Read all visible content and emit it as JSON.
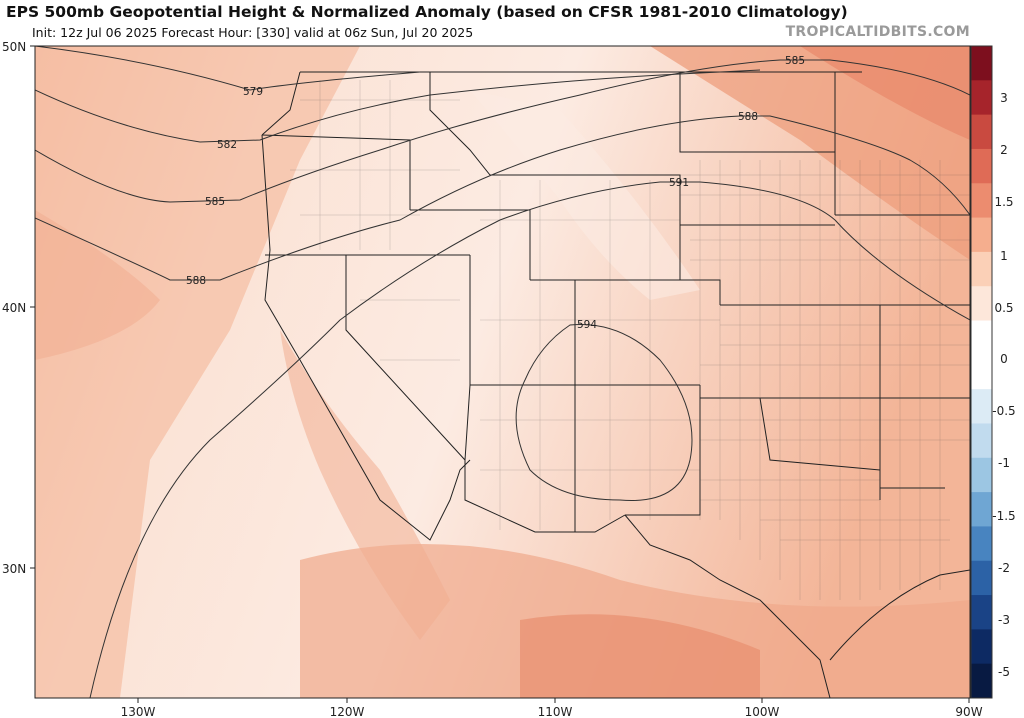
{
  "header": {
    "title": "EPS 500mb Geopotential Height & Normalized Anomaly (based on CFSR 1981-2010 Climatology)",
    "subtitle": "Init: 12z Jul 06 2025   Forecast Hour: [330]   valid at 06z Sun, Jul 20 2025",
    "brand": "TROPICALTIDBITS.COM"
  },
  "axes": {
    "lat_labels": [
      "50N",
      "40N",
      "30N"
    ],
    "lon_labels": [
      "130W",
      "120W",
      "110W",
      "100W",
      "90W"
    ]
  },
  "contours": [
    {
      "value": 579,
      "label": "579"
    },
    {
      "value": 582,
      "label": "582"
    },
    {
      "value": 585,
      "label": "585"
    },
    {
      "value": 588,
      "label": "588"
    },
    {
      "value": 591,
      "label": "591"
    },
    {
      "value": 594,
      "label": "594"
    }
  ],
  "colorbar": {
    "labels": [
      "3",
      "2",
      "1.5",
      "1",
      "0.5",
      "0",
      "-0.5",
      "-1",
      "-1.5",
      "-2",
      "-3",
      "-5"
    ],
    "colors": [
      "#7d0f1e",
      "#a6242b",
      "#c94a40",
      "#df6b56",
      "#ec8c6f",
      "#f5ae8e",
      "#fbd0b7",
      "#fde7da",
      "#ffffff",
      "#ffffff",
      "#dcebf5",
      "#c1dbee",
      "#9cc6e3",
      "#6fa6d3",
      "#4884c0",
      "#2c62a6",
      "#1a4386",
      "#0d2a63",
      "#081a42"
    ],
    "palette": {
      "anomaly_low": "#fbe6dc",
      "anomaly_mid": "#f7cdb6",
      "anomaly_high": "#eda181",
      "anomaly_peak": "#e58a67"
    }
  }
}
